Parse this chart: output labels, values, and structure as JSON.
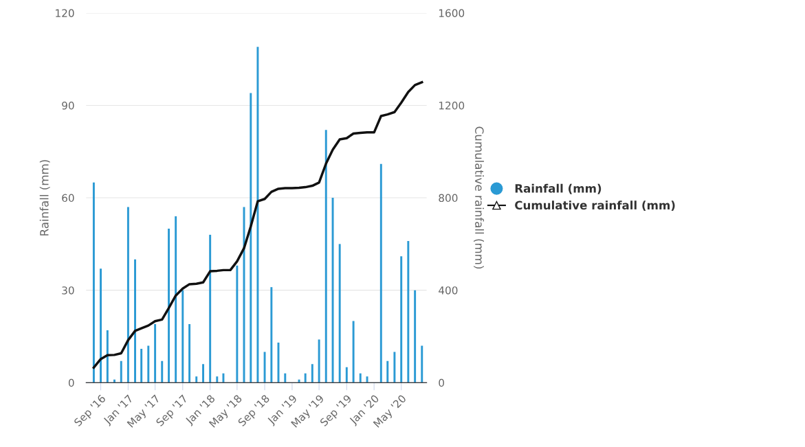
{
  "chart_data": {
    "type": "bar",
    "ylabel": "Rainfall (mm)",
    "y2label": "Cumulative rainfall (mm)",
    "x": [
      "2016-08",
      "2016-09",
      "2016-10",
      "2016-11",
      "2016-12",
      "2017-01",
      "2017-02",
      "2017-03",
      "2017-04",
      "2017-05",
      "2017-06",
      "2017-07",
      "2017-08",
      "2017-09",
      "2017-10",
      "2017-11",
      "2017-12",
      "2018-01",
      "2018-02",
      "2018-03",
      "2018-04",
      "2018-05",
      "2018-06",
      "2018-07",
      "2018-08",
      "2018-09",
      "2018-10",
      "2018-11",
      "2018-12",
      "2019-01",
      "2019-02",
      "2019-03",
      "2019-04",
      "2019-05",
      "2019-06",
      "2019-07",
      "2019-08",
      "2019-09",
      "2019-10",
      "2019-11",
      "2019-12",
      "2020-01",
      "2020-02",
      "2020-03",
      "2020-04",
      "2020-05",
      "2020-06",
      "2020-07",
      "2020-08"
    ],
    "series": [
      {
        "name": "Rainfall (mm)",
        "color": "#2b9ad4",
        "values": [
          65,
          37,
          17,
          1,
          7,
          57,
          40,
          11,
          12,
          19,
          7,
          50,
          54,
          30,
          19,
          2,
          6,
          48,
          2,
          3,
          0,
          38,
          57,
          94,
          109,
          10,
          31,
          13,
          3,
          0,
          1,
          3,
          6,
          14,
          82,
          60,
          45,
          5,
          20,
          3,
          2,
          0,
          71,
          7,
          10,
          41,
          46,
          30,
          12
        ]
      },
      {
        "name": "Cumulative rainfall (mm)",
        "type": "line",
        "axis": "y2",
        "color": "#111111",
        "values": [
          65,
          102,
          119,
          120,
          127,
          184,
          224,
          235,
          247,
          266,
          273,
          323,
          377,
          407,
          426,
          428,
          434,
          482,
          484,
          487,
          487,
          525,
          582,
          676,
          785,
          795,
          826,
          839,
          842,
          842,
          843,
          846,
          852,
          866,
          948,
          1008,
          1053,
          1058,
          1078,
          1081,
          1083,
          1083,
          1154,
          1161,
          1171,
          1212,
          1258,
          1288,
          1300
        ]
      }
    ],
    "xlim": [
      "2016-06-28",
      "2020-08-22"
    ],
    "xticks": [
      {
        "value": "2016-09",
        "label": "Sep '16"
      },
      {
        "value": "2017-01",
        "label": "Jan '17"
      },
      {
        "value": "2017-05",
        "label": "May '17"
      },
      {
        "value": "2017-09",
        "label": "Sep '17"
      },
      {
        "value": "2018-01",
        "label": "Jan '18"
      },
      {
        "value": "2018-05",
        "label": "May '18"
      },
      {
        "value": "2018-09",
        "label": "Sep '18"
      },
      {
        "value": "2019-01",
        "label": "Jan '19"
      },
      {
        "value": "2019-05",
        "label": "May '19"
      },
      {
        "value": "2019-09",
        "label": "Sep '19"
      },
      {
        "value": "2020-01",
        "label": "Jan '20"
      },
      {
        "value": "2020-05",
        "label": "May '20"
      }
    ],
    "ylim": [
      0,
      120
    ],
    "yticks": [
      0,
      30,
      60,
      90,
      120
    ],
    "y2lim": [
      0,
      1600
    ],
    "y2ticks": [
      0,
      400,
      800,
      1200,
      1600
    ],
    "grid": "y",
    "legend": "right"
  }
}
